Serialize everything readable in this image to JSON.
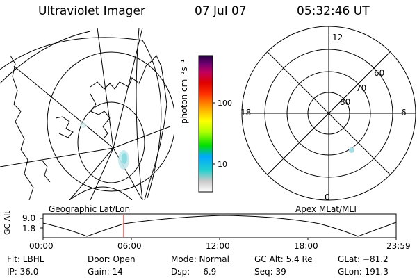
{
  "header": {
    "instrument": "Ultraviolet Imager",
    "date": "07 Jul 07",
    "time": "05:32:46 UT"
  },
  "colorbar": {
    "unit_label": "photon cm⁻²s⁻¹",
    "ticks": [
      "100",
      "10"
    ],
    "colors": [
      "#ffffff",
      "#c8c8c8",
      "#20d0d0",
      "#00a8ff",
      "#00e000",
      "#b0ff00",
      "#ffff00",
      "#ffa000",
      "#ff3000",
      "#e00000",
      "#c00060",
      "#700070",
      "#200040"
    ]
  },
  "polar_plot": {
    "mlt_labels": {
      "top": "12",
      "right": "6",
      "bottom": "0",
      "left": "18"
    },
    "lat_labels": [
      "60",
      "70",
      "80"
    ]
  },
  "timeline": {
    "left_label": "Geographic Lat/Lon",
    "right_label": "Apex MLat/MLT",
    "yaxis_label": "GC Alt",
    "ytick_top": "9.0",
    "ytick_bottom": "1.8",
    "time_ticks": [
      "00:00",
      "06:00",
      "12:00",
      "18:00",
      "23:59"
    ],
    "marker_color": "#e00000"
  },
  "footer": {
    "flt": "Flt: LBHL",
    "ip": "IP: 36.0",
    "door": "Door: Open",
    "gain": "Gain: 14",
    "mode": "Mode: Normal",
    "dsp": "Dsp:     6.9",
    "gc_alt": "GC Alt: 5.4 Re",
    "seq": "Seq: 39",
    "glat": "GLat: −81.2",
    "glon": "GLon: 191.3"
  }
}
